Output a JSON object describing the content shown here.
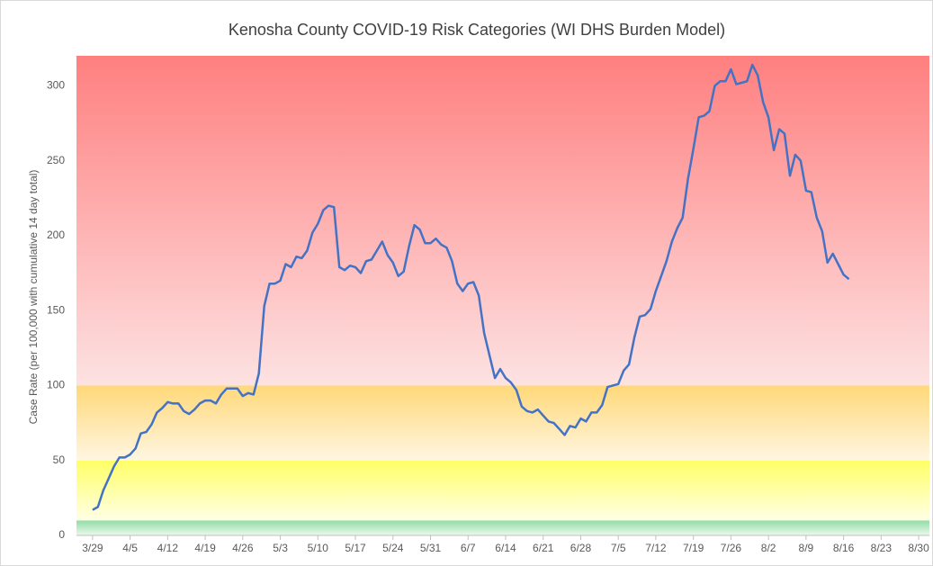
{
  "chart_data": {
    "type": "line",
    "title": "Kenosha County COVID-19 Risk Categories (WI DHS Burden Model)",
    "ylabel": "Case Rate (per 100,000 with cumulative 14 day total)",
    "xlim": [
      "3/26",
      "9/1"
    ],
    "xticks": [
      "3/29",
      "4/5",
      "4/12",
      "4/19",
      "4/26",
      "5/3",
      "5/10",
      "5/17",
      "5/24",
      "5/31",
      "6/7",
      "6/14",
      "6/21",
      "6/28",
      "7/5",
      "7/12",
      "7/19",
      "7/26",
      "8/2",
      "8/9",
      "8/16",
      "8/23",
      "8/30"
    ],
    "ylim": [
      0,
      320
    ],
    "yticks": [
      0,
      50,
      100,
      150,
      200,
      250,
      300
    ],
    "bands": [
      {
        "from": 0,
        "to": 10,
        "color_top": "#8fdca5",
        "color_bottom": "#eef9ee"
      },
      {
        "from": 10,
        "to": 50,
        "color_top": "#ffff66",
        "color_bottom": "#ffffe6"
      },
      {
        "from": 50,
        "to": 100,
        "color_top": "#ffd878",
        "color_bottom": "#fff6e2"
      },
      {
        "from": 100,
        "to": 320,
        "color_top": "#ff7f7f",
        "color_bottom": "#fde2e2"
      }
    ],
    "x": [
      "3/29",
      "3/30",
      "3/31",
      "4/1",
      "4/2",
      "4/3",
      "4/4",
      "4/5",
      "4/6",
      "4/7",
      "4/8",
      "4/9",
      "4/10",
      "4/11",
      "4/12",
      "4/13",
      "4/14",
      "4/15",
      "4/16",
      "4/17",
      "4/18",
      "4/19",
      "4/20",
      "4/21",
      "4/22",
      "4/23",
      "4/24",
      "4/25",
      "4/26",
      "4/27",
      "4/28",
      "4/29",
      "4/30",
      "5/1",
      "5/2",
      "5/3",
      "5/4",
      "5/5",
      "5/6",
      "5/7",
      "5/8",
      "5/9",
      "5/10",
      "5/11",
      "5/12",
      "5/13",
      "5/14",
      "5/15",
      "5/16",
      "5/17",
      "5/18",
      "5/19",
      "5/20",
      "5/21",
      "5/22",
      "5/23",
      "5/24",
      "5/25",
      "5/26",
      "5/27",
      "5/28",
      "5/29",
      "5/30",
      "5/31",
      "6/1",
      "6/2",
      "6/3",
      "6/4",
      "6/5",
      "6/6",
      "6/7",
      "6/8",
      "6/9",
      "6/10",
      "6/11",
      "6/12",
      "6/13",
      "6/14",
      "6/15",
      "6/16",
      "6/17",
      "6/18",
      "6/19",
      "6/20",
      "6/21",
      "6/22",
      "6/23",
      "6/24",
      "6/25",
      "6/26",
      "6/27",
      "6/28",
      "6/29",
      "6/30",
      "7/1",
      "7/2",
      "7/3",
      "7/4",
      "7/5",
      "7/6",
      "7/7",
      "7/8",
      "7/9",
      "7/10",
      "7/11",
      "7/12",
      "7/13",
      "7/14",
      "7/15",
      "7/16",
      "7/17",
      "7/18",
      "7/19",
      "7/20",
      "7/21",
      "7/22",
      "7/23",
      "7/24",
      "7/25",
      "7/26",
      "7/27",
      "7/28",
      "7/29",
      "7/30",
      "7/31",
      "8/1",
      "8/2",
      "8/3",
      "8/4",
      "8/5",
      "8/6",
      "8/7",
      "8/8",
      "8/9",
      "8/10",
      "8/11",
      "8/12",
      "8/13",
      "8/14",
      "8/15",
      "8/16",
      "8/17"
    ],
    "series": [
      {
        "name": "Case Rate",
        "color": "#4472c4",
        "values": [
          17,
          19,
          30,
          38,
          46,
          52,
          52,
          54,
          58,
          68,
          69,
          74,
          82,
          85,
          89,
          88,
          88,
          83,
          81,
          84,
          88,
          90,
          90,
          88,
          94,
          98,
          98,
          98,
          93,
          95,
          94,
          108,
          153,
          168,
          168,
          170,
          181,
          179,
          186,
          185,
          190,
          202,
          208,
          217,
          220,
          219,
          179,
          177,
          180,
          179,
          175,
          183,
          184,
          190,
          196,
          187,
          182,
          173,
          176,
          193,
          207,
          204,
          195,
          195,
          198,
          194,
          192,
          183,
          168,
          163,
          168,
          169,
          160,
          135,
          120,
          105,
          111,
          105,
          102,
          97,
          86,
          83,
          82,
          84,
          80,
          76,
          75,
          71,
          67,
          73,
          72,
          78,
          76,
          82,
          82,
          87,
          99,
          100,
          101,
          110,
          114,
          132,
          146,
          147,
          151,
          163,
          173,
          183,
          196,
          205,
          212,
          238,
          258,
          279,
          280,
          283,
          300,
          303,
          303,
          311,
          301,
          302,
          303,
          314,
          307,
          289,
          279,
          257,
          271,
          268,
          240,
          254,
          250,
          230,
          229,
          212,
          203,
          182,
          188,
          181,
          174,
          171
        ]
      }
    ]
  }
}
